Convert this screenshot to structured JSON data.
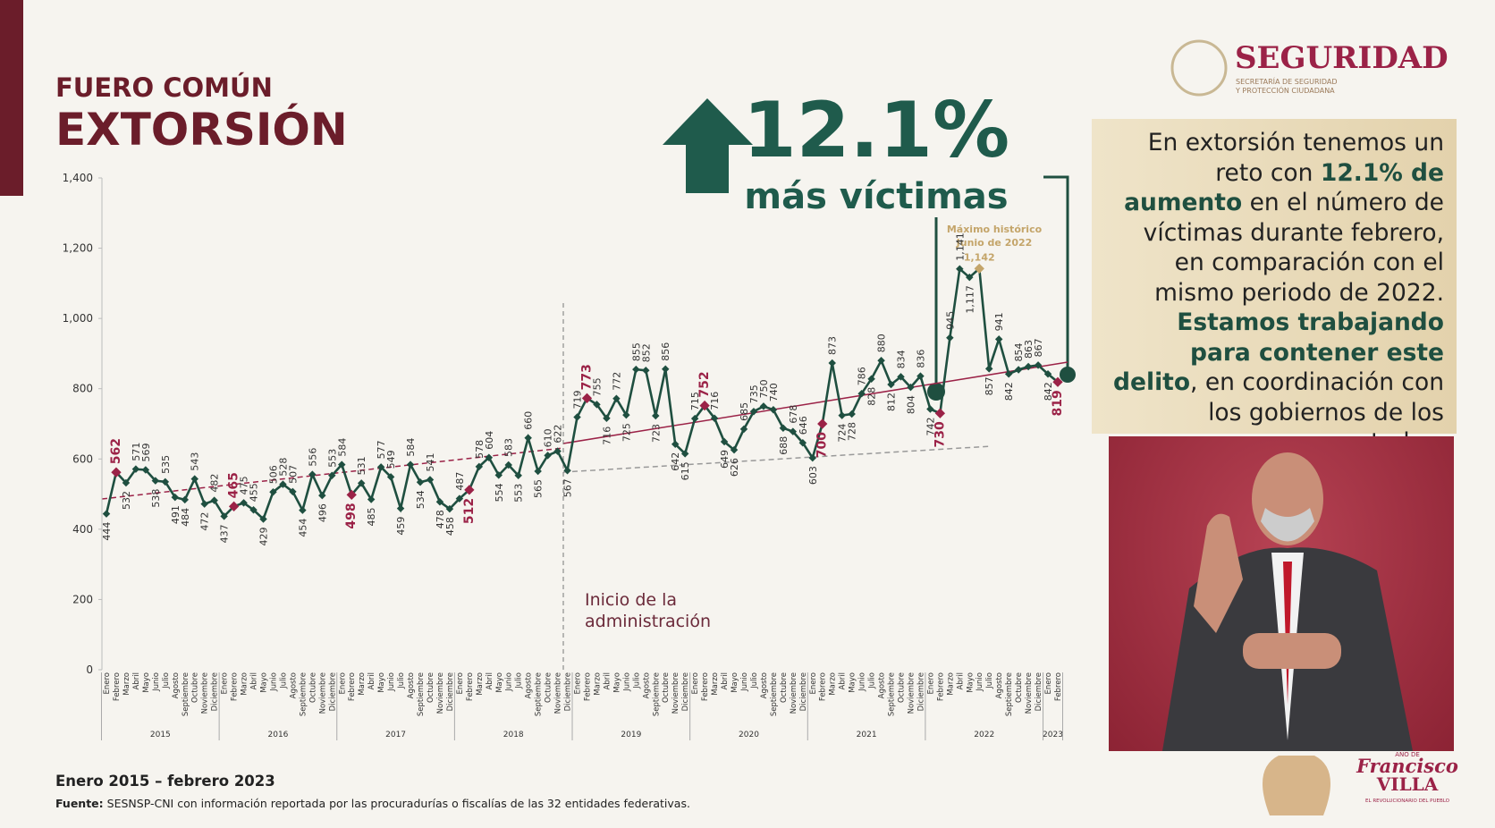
{
  "header": {
    "kicker": "FUERO COMÚN",
    "title": "EXTORSIÓN"
  },
  "headline": {
    "value": "12.1%",
    "text": "más víctimas"
  },
  "logo": {
    "name": "SEGURIDAD",
    "sub_1": "SECRETARÍA DE SEGURIDAD",
    "sub_2": "Y PROTECCIÓN CIUDADANA"
  },
  "callout": [
    "En extorsión tenemos un reto con",
    "12.1% de aumento",
    "en el número de víctimas durante febrero, en comparación con el mismo periodo de 2022.",
    "Estamos trabajando para contener este delito",
    ", en coordinación con los gobiernos de los estados."
  ],
  "footer": {
    "period": "Enero 2015 – febrero 2023",
    "source_label": "Fuente:",
    "source": "SESNSP-CNI con información reportada por las procuradurías o fiscalías de las 32 entidades federativas."
  },
  "villa": {
    "top": "AÑO DE",
    "name_1": "Francisco",
    "name_2": "VILLA",
    "sub": "EL REVOLUCIONARIO DEL PUEBLO"
  },
  "chart_data": {
    "type": "line",
    "categories": [
      "Enero",
      "Febrero",
      "Marzo",
      "Abril",
      "Mayo",
      "Junio",
      "Julio",
      "Agosto",
      "Septiembre",
      "Octubre",
      "Noviembre",
      "Diciembre",
      "Enero",
      "Febrero",
      "Marzo",
      "Abril",
      "Mayo",
      "Junio",
      "Julio",
      "Agosto",
      "Septiembre",
      "Octubre",
      "Noviembre",
      "Diciembre",
      "Enero",
      "Febrero",
      "Marzo",
      "Abril",
      "Mayo",
      "Junio",
      "Julio",
      "Agosto",
      "Septiembre",
      "Octubre",
      "Noviembre",
      "Diciembre",
      "Enero",
      "Febrero",
      "Marzo",
      "Abril",
      "Mayo",
      "Junio",
      "Julio",
      "Agosto",
      "Septiembre",
      "Octubre",
      "Noviembre",
      "Diciembre",
      "Enero",
      "Febrero",
      "Marzo",
      "Abril",
      "Mayo",
      "Junio",
      "Julio",
      "Agosto",
      "Septiembre",
      "Octubre",
      "Noviembre",
      "Diciembre",
      "Enero",
      "Febrero",
      "Marzo",
      "Abril",
      "Mayo",
      "Junio",
      "Julio",
      "Agosto",
      "Septiembre",
      "Octubre",
      "Noviembre",
      "Diciembre",
      "Enero",
      "Febrero",
      "Marzo",
      "Abril",
      "Mayo",
      "Junio",
      "Julio",
      "Agosto",
      "Septiembre",
      "Octubre",
      "Noviembre",
      "Diciembre",
      "Enero",
      "Febrero",
      "Marzo",
      "Abril",
      "Mayo",
      "Junio",
      "Julio",
      "Agosto",
      "Septiembre",
      "Octubre",
      "Noviembre",
      "Diciembre",
      "Enero",
      "Febrero"
    ],
    "x_groups": [
      "2015",
      "2016",
      "2017",
      "2018",
      "2019",
      "2020",
      "2021",
      "2022",
      "2023"
    ],
    "values": [
      444,
      562,
      532,
      571,
      569,
      538,
      535,
      491,
      484,
      543,
      472,
      482,
      437,
      465,
      475,
      455,
      429,
      506,
      528,
      507,
      454,
      556,
      496,
      553,
      584,
      498,
      531,
      485,
      577,
      549,
      459,
      584,
      534,
      541,
      478,
      458,
      487,
      512,
      578,
      604,
      554,
      583,
      553,
      660,
      565,
      610,
      622,
      567,
      719,
      773,
      755,
      716,
      772,
      725,
      855,
      852,
      723,
      856,
      642,
      615,
      715,
      752,
      716,
      649,
      626,
      685,
      735,
      750,
      740,
      688,
      678,
      646,
      603,
      700,
      873,
      724,
      728,
      786,
      828,
      880,
      812,
      834,
      804,
      836,
      742,
      730,
      945,
      1141,
      1117,
      1142,
      857,
      941,
      842,
      854,
      863,
      867,
      842,
      819
    ],
    "value_labels": [
      "444",
      "562",
      "532",
      "571",
      "569",
      "538",
      "535",
      "491",
      "484",
      "543",
      "472",
      "482",
      "437",
      "465",
      "475",
      "455",
      "429",
      "506",
      "528",
      "507",
      "454",
      "556",
      "496",
      "553",
      "584",
      "498",
      "531",
      "485",
      "577",
      "549",
      "459",
      "584",
      "534",
      "541",
      "478",
      "458",
      "487",
      "512",
      "578",
      "604",
      "554",
      "583",
      "553",
      "660",
      "565",
      "610",
      "622",
      "567",
      "719",
      "773",
      "755",
      "716",
      "772",
      "725",
      "855",
      "852",
      "723",
      "856",
      "642",
      "615",
      "715",
      "752",
      "716",
      "649",
      "626",
      "685",
      "735",
      "750",
      "740",
      "688",
      "678",
      "646",
      "603",
      "700",
      "873",
      "724",
      "728",
      "786",
      "828",
      "880",
      "812",
      "834",
      "804",
      "836",
      "742",
      "730",
      "945",
      "1,141",
      "1,117",
      "1,142",
      "857",
      "941",
      "842",
      "854",
      "863",
      "867",
      "842",
      "819"
    ],
    "color": "#1f4f40",
    "highlight_color": "#9b2247",
    "peak_color": "#c4a56a",
    "highlight_points": [
      1,
      13,
      25,
      37,
      49,
      61,
      73,
      85,
      97
    ],
    "ylim": [
      0,
      1400
    ],
    "yticks": [
      0,
      200,
      400,
      600,
      800,
      {
        "value": 1000,
        "label": "1,000"
      },
      {
        "value": 1200,
        "label": "1,200"
      },
      {
        "value": 1400,
        "label": "1,400"
      }
    ],
    "annotation": {
      "lines": [
        "Máximo histórico",
        "Junio de 2022"
      ]
    },
    "marker_text": {
      "lines": [
        "Inicio de la",
        "administración"
      ]
    }
  }
}
